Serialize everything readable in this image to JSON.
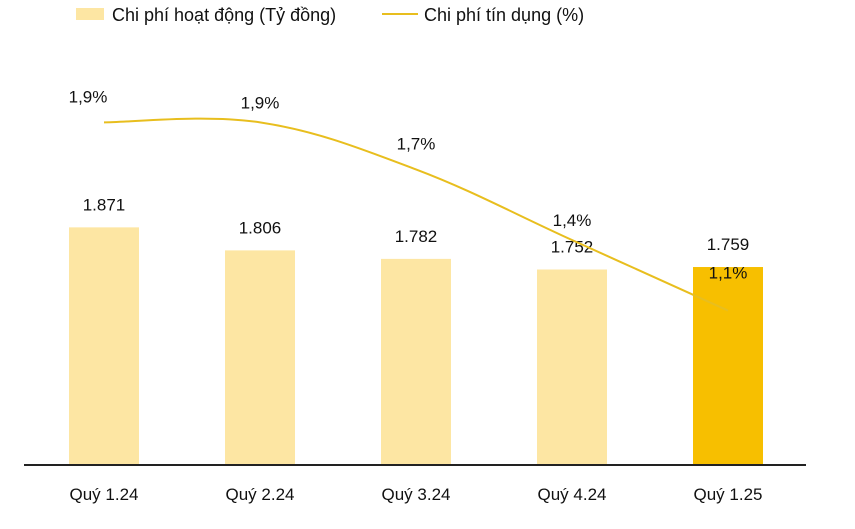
{
  "chart_data": {
    "type": "bar",
    "categories": [
      "Quý 1.24",
      "Quý 2.24",
      "Quý 3.24",
      "Quý 4.24",
      "Quý 1.25"
    ],
    "series": [
      {
        "name": "Chi phí hoạt động (Tỷ đồng)",
        "type": "bar",
        "values": [
          1871,
          1806,
          1782,
          1752,
          1759
        ],
        "labels": [
          "1.871",
          "1.806",
          "1.782",
          "1.752",
          "1.759"
        ],
        "color": "#FDE6A3",
        "highlight_index": 4,
        "highlight_color": "#F7BF00"
      },
      {
        "name": "Chi phí tín dụng (%)",
        "type": "line",
        "values": [
          1.9,
          1.9,
          1.7,
          1.4,
          1.1
        ],
        "labels": [
          "1,9%",
          "1,9%",
          "1,7%",
          "1,4%",
          "1,1%"
        ],
        "color": "#E8BE1E"
      }
    ],
    "bar_ylim": [
      1200,
      1920
    ],
    "line_ylim": [
      0.55,
      2.25
    ],
    "legend_position": "top-left",
    "title": "",
    "xlabel": "",
    "ylabel": ""
  }
}
